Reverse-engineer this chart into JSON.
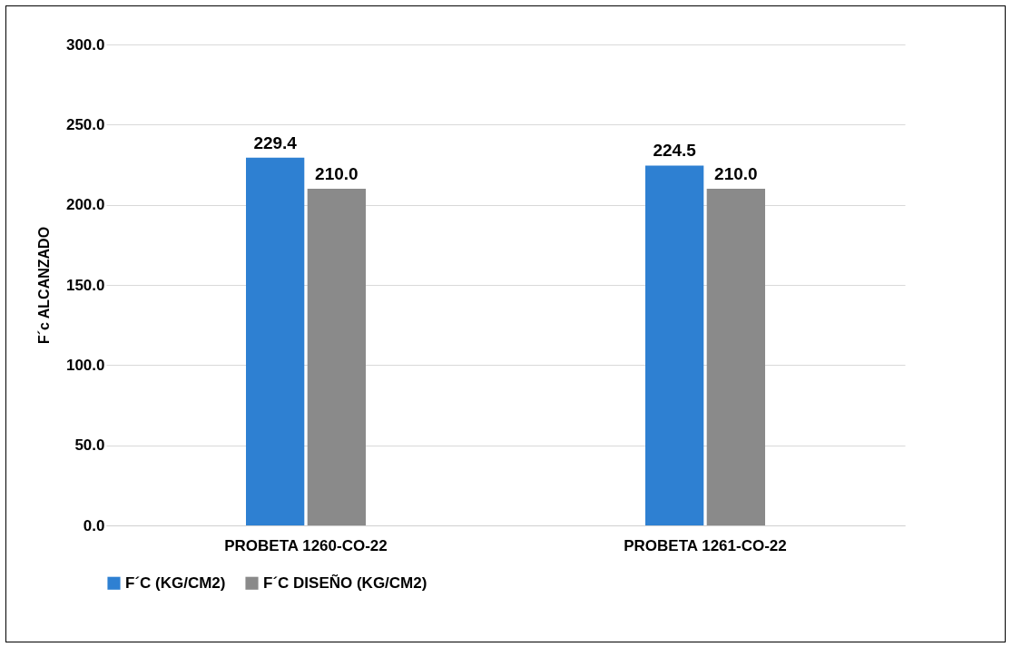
{
  "chart_data": {
    "type": "bar",
    "ylabel": "F´c ALCANZADO",
    "categories": [
      "PROBETA 1260-CO-22",
      "PROBETA 1261-CO-22"
    ],
    "series": [
      {
        "name": "F´C (KG/CM2)",
        "color": "#2e80d2",
        "values": [
          229.4,
          224.5
        ],
        "value_labels": [
          "229.4",
          "224.5"
        ]
      },
      {
        "name": "F´C DISEÑO (KG/CM2)",
        "color": "#8a8a8a",
        "values": [
          210.0,
          210.0
        ],
        "value_labels": [
          "210.0",
          "210.0"
        ]
      }
    ],
    "ylim": [
      0,
      300
    ],
    "yticks": [
      {
        "value": 0,
        "label": "0.0"
      },
      {
        "value": 50,
        "label": "50.0"
      },
      {
        "value": 100,
        "label": "100.0"
      },
      {
        "value": 150,
        "label": "150.0"
      },
      {
        "value": 200,
        "label": "200.0"
      },
      {
        "value": 250,
        "label": "250.0"
      },
      {
        "value": 300,
        "label": "300.0"
      }
    ],
    "grid": "y",
    "legend": "bottom"
  }
}
